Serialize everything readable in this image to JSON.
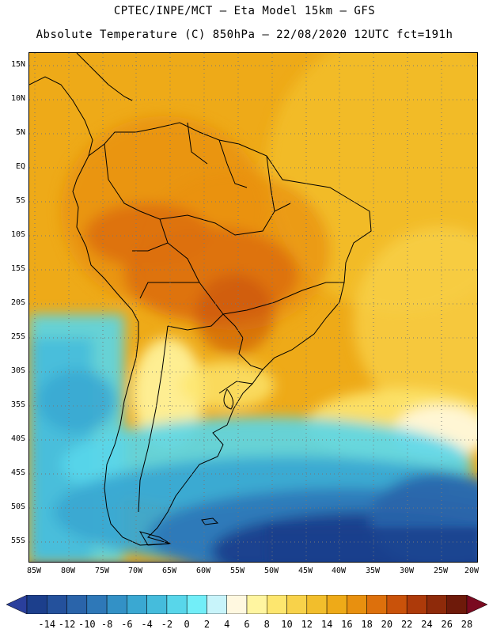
{
  "header": {
    "line1": "CPTEC/INPE/MCT –  Eta Model 15km – GFS",
    "line2": "Absolute Temperature (C) 850hPa – 22/08/2020 12UTC fct=191h"
  },
  "map": {
    "lat_labels": [
      "15N",
      "10N",
      "5N",
      "EQ",
      "5S",
      "10S",
      "15S",
      "20S",
      "25S",
      "30S",
      "35S",
      "40S",
      "45S",
      "50S",
      "55S"
    ],
    "lon_labels": [
      "85W",
      "80W",
      "75W",
      "70W",
      "65W",
      "60W",
      "55W",
      "50W",
      "45W",
      "40W",
      "35W",
      "30W",
      "25W",
      "20W"
    ],
    "grid": "dotted",
    "projection": "lat-lon"
  },
  "colorbar": {
    "labels": [
      "-14",
      "-12",
      "-10",
      "-8",
      "-6",
      "-4",
      "-2",
      "0",
      "2",
      "4",
      "6",
      "8",
      "10",
      "12",
      "14",
      "16",
      "18",
      "20",
      "22",
      "24",
      "26",
      "28"
    ],
    "colors": [
      "#1c3f8c",
      "#24519c",
      "#2a64aa",
      "#2e78b8",
      "#3391c6",
      "#3aa8d2",
      "#45bcdc",
      "#58d6ea",
      "#72eef8",
      "#c8f4fa",
      "#fff8e0",
      "#fff5a0",
      "#fde66e",
      "#f8d24a",
      "#f2be2c",
      "#eeaa18",
      "#e8900f",
      "#dd700c",
      "#c9520a",
      "#ad3a0a",
      "#8e2a0a",
      "#6e1a0a"
    ],
    "under_color": "#2a3f9c",
    "over_color": "#7a0a20"
  }
}
